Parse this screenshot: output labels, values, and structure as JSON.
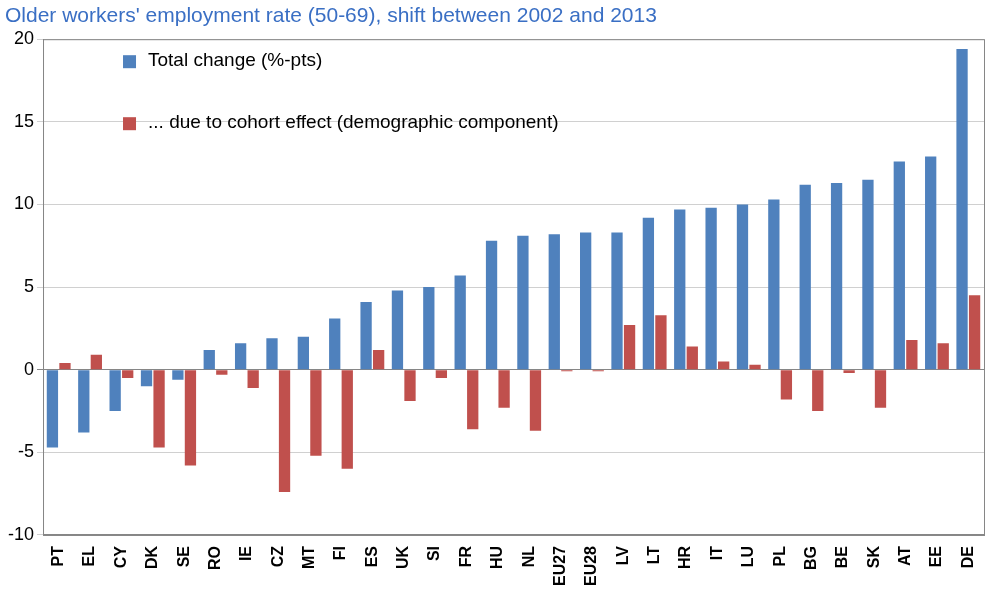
{
  "chart_data": {
    "type": "bar",
    "title": "Older workers' employment rate (50-69), shift between 2002 and 2013",
    "categories": [
      "PT",
      "EL",
      "CY",
      "DK",
      "SE",
      "RO",
      "IE",
      "CZ",
      "MT",
      "FI",
      "ES",
      "UK",
      "SI",
      "FR",
      "HU",
      "NL",
      "EU27",
      "EU28",
      "LV",
      "LT",
      "HR",
      "IT",
      "LU",
      "PL",
      "BG",
      "BE",
      "SK",
      "AT",
      "EE",
      "DE"
    ],
    "series": [
      {
        "name": "Total change (%-pts)",
        "color": "#4F81BD",
        "values": [
          -4.7,
          -3.8,
          -2.5,
          -1.0,
          -0.6,
          1.2,
          1.6,
          1.9,
          2.0,
          3.1,
          4.1,
          4.8,
          5.0,
          5.7,
          7.8,
          8.1,
          8.2,
          8.3,
          8.3,
          9.2,
          9.7,
          9.8,
          10.0,
          10.3,
          11.2,
          11.3,
          11.5,
          12.6,
          12.9,
          19.4
        ]
      },
      {
        "name": "... due to cohort effect (demographic component)",
        "color": "#C0504D",
        "values": [
          0.4,
          0.9,
          -0.5,
          -4.7,
          -5.8,
          -0.3,
          -1.1,
          -7.4,
          -5.2,
          -6.0,
          1.2,
          -1.9,
          -0.5,
          -3.6,
          -2.3,
          -3.7,
          -0.1,
          -0.1,
          2.7,
          3.3,
          1.4,
          0.5,
          0.3,
          -1.8,
          -2.5,
          -0.2,
          -2.3,
          1.8,
          1.6,
          4.5
        ]
      }
    ],
    "ylim": [
      -10,
      20
    ],
    "yticks": [
      -10,
      -5,
      0,
      5,
      10,
      15,
      20
    ],
    "grid": true,
    "legend": "upper left"
  }
}
